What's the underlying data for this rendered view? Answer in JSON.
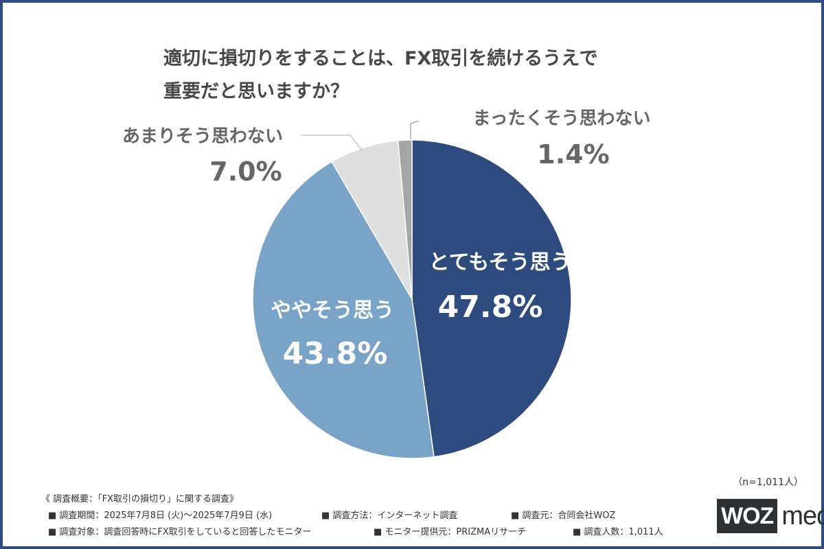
{
  "title": {
    "line1": "適切に損切りをすることは、FX取引を続けるうえで",
    "line2": "重要だと思いますか？"
  },
  "chart_data": {
    "type": "pie",
    "start": "12 o'clock, clockwise",
    "slices": [
      {
        "label": "とてもそう思う",
        "value": 47.8,
        "display": "47.8%",
        "color": "#2e4b80",
        "label_position": "inside"
      },
      {
        "label": "ややそう思う",
        "value": 43.8,
        "display": "43.8%",
        "color": "#7aa3c8",
        "label_position": "inside"
      },
      {
        "label": "あまりそう思わない",
        "value": 7.0,
        "display": "7.0%",
        "color": "#dfdfdf",
        "label_position": "outside-left"
      },
      {
        "label": "まったくそう思わない",
        "value": 1.4,
        "display": "1.4%",
        "color": "#a6a6a6",
        "label_position": "outside-right"
      }
    ]
  },
  "sample_note": "（n=1,011人）",
  "footer": {
    "heading": "《 調査概要：「FX取引の損切り」に関する調査》",
    "period": "■ 調査期間：2025年7月8日 (火)～2025年7月9日 (水)",
    "method": "■ 調査方法：インターネット調査",
    "organizer": "■ 調査元：合同会社WOZ",
    "subjects": "■ 調査対象：調査回答時にFX取引をしていると回答したモニター",
    "provider": "■ モニター提供元：PRIZMAリサーチ",
    "count": "■ 調査人数：1,011人"
  },
  "logo": {
    "box": "WOZ",
    "word": "media"
  }
}
